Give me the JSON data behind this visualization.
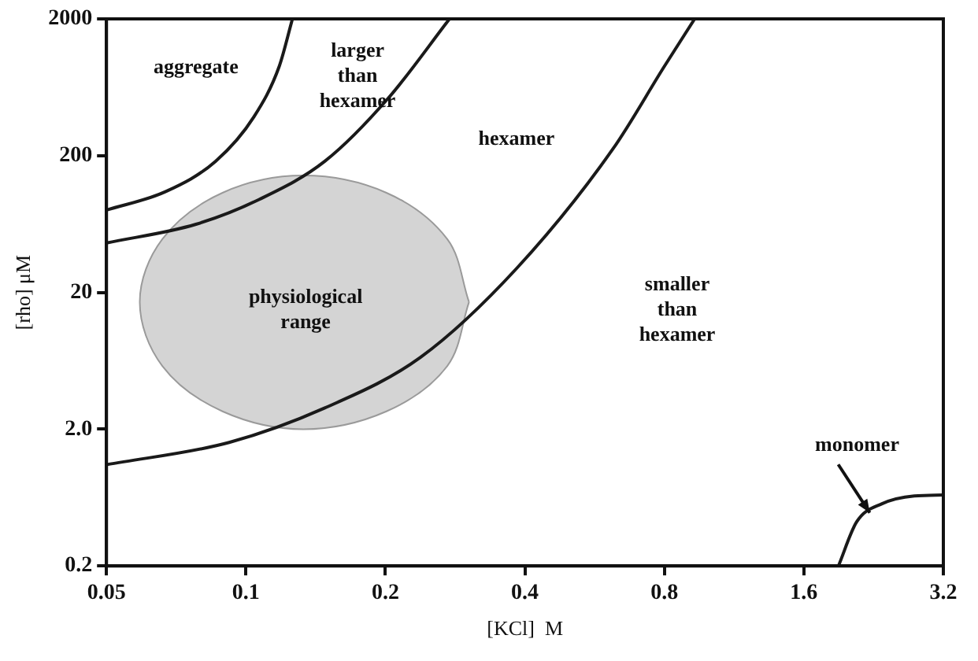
{
  "chart_data": {
    "type": "line",
    "log": "xy",
    "grid": false,
    "legend": false,
    "marker": "none",
    "xlabel": "[KCl]  M",
    "ylabel": "[rho] μM",
    "xlim": [
      0.05,
      3.2
    ],
    "xticks": [
      0.05,
      0.1,
      0.2,
      0.4,
      0.8,
      1.6,
      3.2
    ],
    "ylim": [
      0.2,
      2000
    ],
    "yticks": [
      {
        "value": 0.2,
        "label": "0.2"
      },
      {
        "value": 2,
        "label": "2.0"
      },
      20,
      200,
      2000
    ],
    "series": [
      {
        "type": "line",
        "color": "#1a1a1a",
        "x": [
          0.05,
          0.067,
          0.086,
          0.104,
          0.118,
          0.126
        ],
        "values": [
          80,
          109,
          182,
          384,
          900,
          2000
        ]
      },
      {
        "type": "line",
        "color": "#1a1a1a",
        "x": [
          0.05,
          0.078,
          0.107,
          0.148,
          0.203,
          0.275
        ],
        "values": [
          46,
          63,
          96,
          182,
          528,
          2000
        ]
      },
      {
        "type": "line",
        "color": "#1a1a1a",
        "x": [
          0.05,
          0.092,
          0.148,
          0.238,
          0.384,
          0.62,
          0.8,
          0.93
        ],
        "values": [
          1.1,
          1.6,
          2.86,
          6.7,
          30,
          225,
          900,
          2000
        ]
      },
      {
        "type": "line",
        "color": "#1a1a1a",
        "x": [
          1.9,
          2.08,
          2.36,
          2.77,
          3.2
        ],
        "values": [
          0.2,
          0.42,
          0.57,
          0.65,
          0.66
        ]
      },
      {
        "type": "area",
        "color": "#d4d4d4",
        "x": [
          0.303,
          0.272,
          0.201,
          0.133,
          0.089,
          0.066,
          0.059,
          0.066,
          0.089,
          0.133,
          0.201,
          0.272,
          0.303
        ],
        "values": [
          17,
          49,
          107,
          143,
          107,
          49,
          17,
          5.8,
          2.7,
          2.0,
          2.7,
          5.8,
          17
        ]
      }
    ],
    "annotations": [
      "aggregate",
      "larger\nthan\nhexamer",
      "hexamer",
      "physiological\nrange",
      "smaller\nthan\nhexamer",
      {
        "text": "monomer",
        "x": 2.22,
        "y": 0.49
      }
    ]
  }
}
